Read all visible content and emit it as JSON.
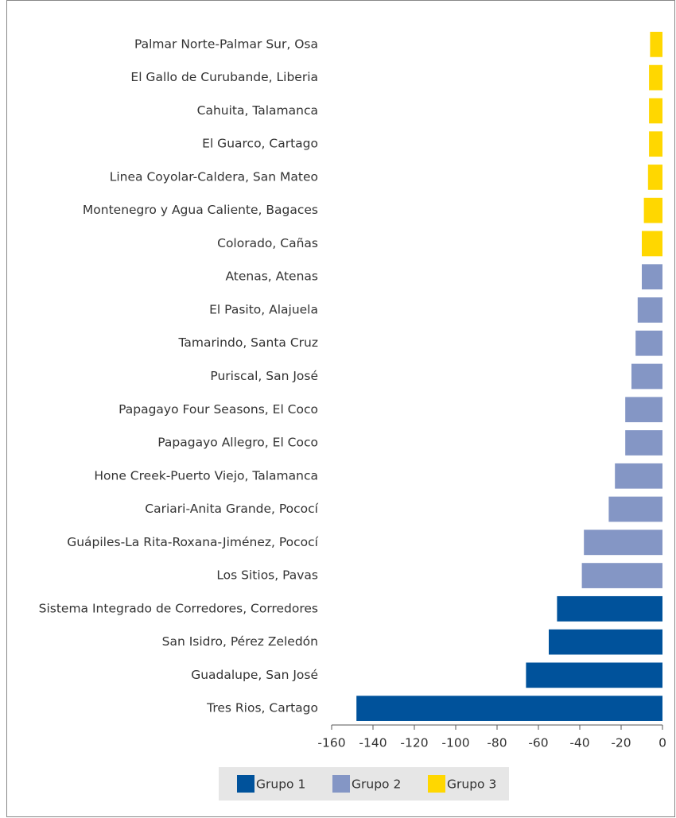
{
  "chart_data": {
    "type": "bar",
    "orientation": "horizontal",
    "categories": [
      "Palmar Norte-Palmar Sur, Osa",
      "El Gallo de Curubande, Liberia",
      "Cahuita, Talamanca",
      "El Guarco, Cartago",
      "Linea Coyolar-Caldera, San Mateo",
      "Montenegro y Agua Caliente, Bagaces",
      "Colorado, Cañas",
      "Atenas, Atenas",
      "El Pasito, Alajuela",
      "Tamarindo, Santa Cruz",
      "Puriscal, San José",
      "Papagayo Four Seasons, El Coco",
      "Papagayo Allegro, El Coco",
      "Hone Creek-Puerto Viejo, Talamanca",
      "Cariari-Anita Grande, Pococí",
      "Guápiles-La Rita-Roxana-Jiménez, Pococí",
      "Los Sitios, Pavas",
      "Sistema Integrado de Corredores, Corredores",
      "San Isidro, Pérez Zeledón",
      "Guadalupe, San José",
      "Tres Rios, Cartago"
    ],
    "series": [
      {
        "name": "Grupo 1",
        "color": "#00529b",
        "values": [
          null,
          null,
          null,
          null,
          null,
          null,
          null,
          null,
          null,
          null,
          null,
          null,
          null,
          null,
          null,
          null,
          null,
          -51,
          -55,
          -66,
          -148
        ]
      },
      {
        "name": "Grupo 2",
        "color": "#8496c5",
        "values": [
          null,
          null,
          null,
          null,
          null,
          null,
          null,
          -10,
          -12,
          -13,
          -15,
          -18,
          -18,
          -23,
          -26,
          -38,
          -39,
          null,
          null,
          null,
          null
        ]
      },
      {
        "name": "Grupo 3",
        "color": "#ffd700",
        "values": [
          -6,
          -6.5,
          -6.5,
          -6.5,
          -7,
          -9,
          -10,
          null,
          null,
          null,
          null,
          null,
          null,
          null,
          null,
          null,
          null,
          null,
          null,
          null,
          null
        ]
      }
    ],
    "xlim": [
      -160,
      0
    ],
    "xticks": [
      -160,
      -140,
      -120,
      -100,
      -80,
      -60,
      -40,
      -20,
      0
    ],
    "legend": "bottom"
  }
}
